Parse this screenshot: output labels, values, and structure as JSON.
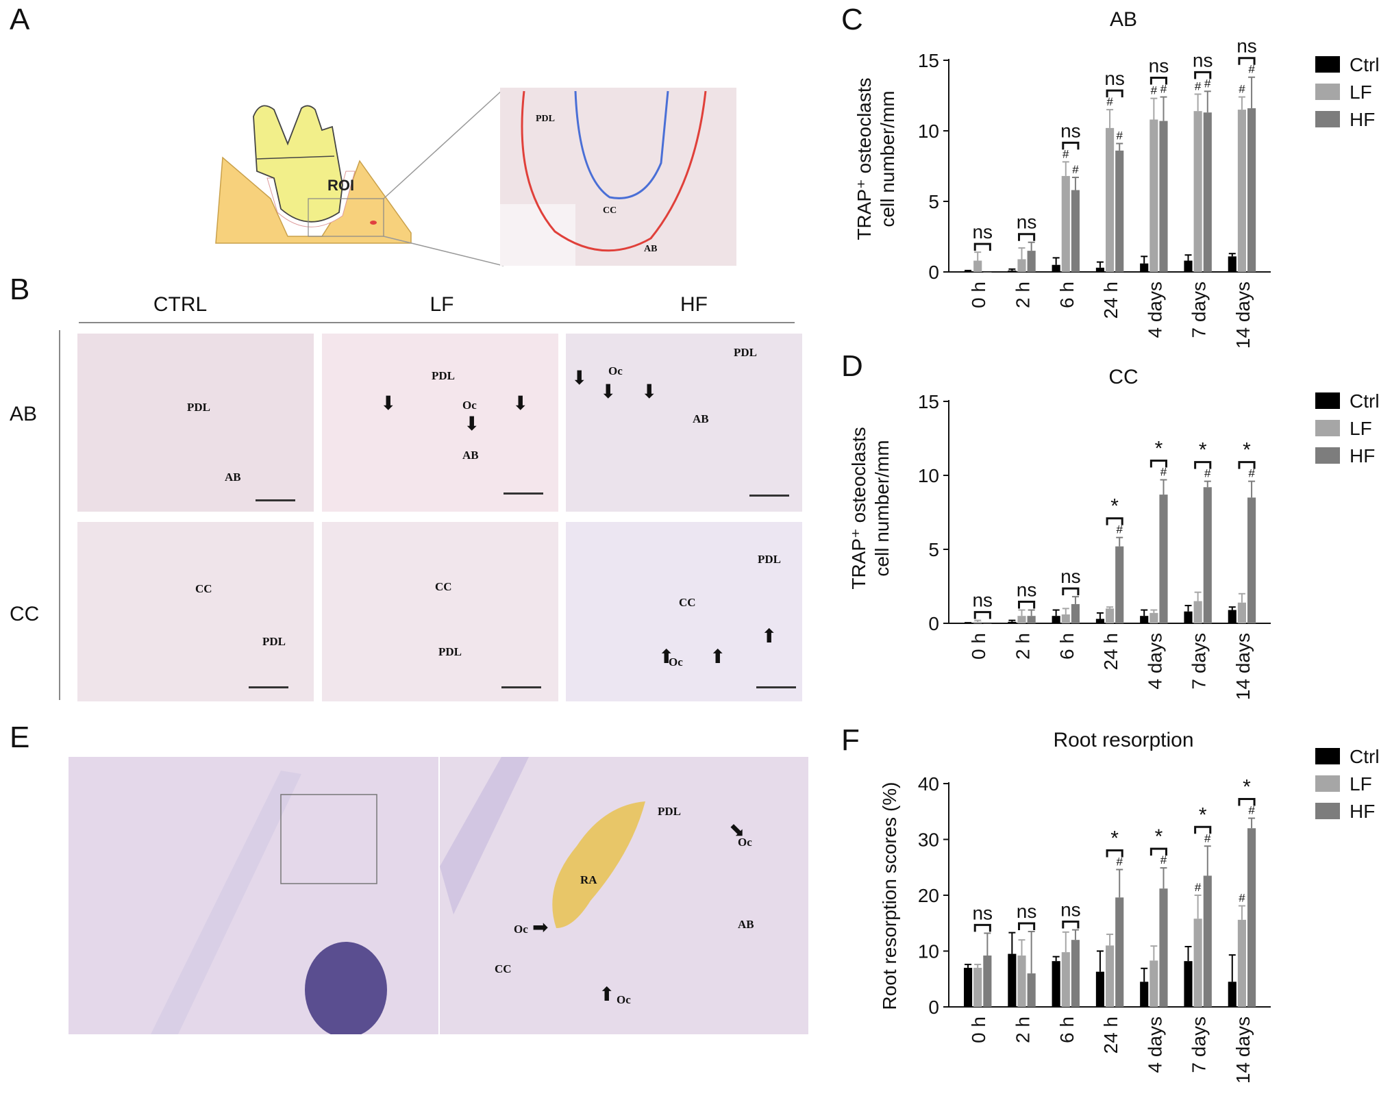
{
  "panels": {
    "a": {
      "letter": "A",
      "roi_label": "ROI",
      "zoom_labels": [
        "PDL",
        "CC",
        "AB"
      ]
    },
    "b": {
      "letter": "B",
      "col_headers": [
        "CTRL",
        "LF",
        "HF"
      ],
      "row_headers": [
        "AB",
        "CC"
      ],
      "image_labels": {
        "ab_ctrl": [
          "PDL",
          "AB"
        ],
        "ab_lf": [
          "PDL",
          "Oc",
          "AB"
        ],
        "ab_hf": [
          "PDL",
          "Oc",
          "AB"
        ],
        "cc_ctrl": [
          "CC",
          "PDL"
        ],
        "cc_lf": [
          "CC",
          "PDL"
        ],
        "cc_hf": [
          "PDL",
          "CC",
          "Oc"
        ]
      }
    },
    "c": {
      "letter": "C"
    },
    "d": {
      "letter": "D"
    },
    "e": {
      "letter": "E",
      "right_labels": [
        "PDL",
        "Oc",
        "RA",
        "Oc",
        "AB",
        "CC",
        "Oc"
      ]
    },
    "f": {
      "letter": "F"
    }
  },
  "colors": {
    "ctrl": "#000000",
    "lf": "#a6a6a6",
    "hf": "#7d7d7d",
    "roi_fill": "#f7d17c",
    "tooth": "#f2ef8a",
    "ab_line": "#e0403a",
    "cc_line": "#4a6fd6",
    "ra_fill": "#e8c35a",
    "stain_bg": "#efe2ea"
  },
  "chart_data": [
    {
      "type": "bar",
      "title": "AB",
      "ylabel": "TRAP⁺ osteoclasts\ncell number/mm",
      "ylim": [
        0,
        15
      ],
      "yticks": [
        "0",
        "5",
        "10",
        "15"
      ],
      "categories": [
        "0 h",
        "2 h",
        "6 h",
        "24 h",
        "4 days",
        "7 days",
        "14 days"
      ],
      "legend": [
        "Ctrl",
        "LF",
        "HF"
      ],
      "series": [
        {
          "name": "Ctrl",
          "values": [
            0.05,
            0.1,
            0.5,
            0.3,
            0.6,
            0.8,
            1.1
          ],
          "errors": [
            0.05,
            0.1,
            0.5,
            0.4,
            0.5,
            0.4,
            0.2
          ]
        },
        {
          "name": "LF",
          "values": [
            0.8,
            0.9,
            6.8,
            10.2,
            10.8,
            11.4,
            11.5
          ],
          "errors": [
            0.6,
            0.8,
            1.0,
            1.3,
            1.5,
            1.2,
            0.9
          ]
        },
        {
          "name": "HF",
          "values": [
            0.0,
            1.5,
            5.8,
            8.6,
            10.7,
            11.3,
            11.6
          ],
          "errors": [
            0.0,
            0.6,
            0.9,
            0.5,
            1.7,
            1.5,
            2.2
          ]
        }
      ],
      "lf_marks": [
        "",
        "",
        "#",
        "#",
        "#",
        "#",
        "#"
      ],
      "hf_marks": [
        "",
        "",
        "#",
        "#",
        "#",
        "#",
        "#"
      ],
      "comparisons": [
        "ns",
        "ns",
        "ns",
        "ns",
        "ns",
        "ns",
        "ns"
      ],
      "legend_position": "right"
    },
    {
      "type": "bar",
      "title": "CC",
      "ylabel": "TRAP⁺ osteoclasts\ncell number/mm",
      "ylim": [
        0,
        15
      ],
      "yticks": [
        "0",
        "5",
        "10",
        "15"
      ],
      "categories": [
        "0 h",
        "2 h",
        "6 h",
        "24 h",
        "4 days",
        "7 days",
        "14 days"
      ],
      "legend": [
        "Ctrl",
        "LF",
        "HF"
      ],
      "series": [
        {
          "name": "Ctrl",
          "values": [
            0.02,
            0.1,
            0.5,
            0.3,
            0.5,
            0.8,
            0.9
          ],
          "errors": [
            0.02,
            0.1,
            0.4,
            0.4,
            0.4,
            0.4,
            0.2
          ]
        },
        {
          "name": "LF",
          "values": [
            0.1,
            0.5,
            0.6,
            1.0,
            0.7,
            1.5,
            1.4
          ],
          "errors": [
            0.1,
            0.4,
            0.4,
            0.1,
            0.2,
            0.6,
            0.6
          ]
        },
        {
          "name": "HF",
          "values": [
            0.0,
            0.5,
            1.3,
            5.2,
            8.7,
            9.2,
            8.5
          ],
          "errors": [
            0.0,
            0.4,
            0.5,
            0.6,
            1.0,
            0.4,
            1.1
          ]
        }
      ],
      "lf_marks": [
        "",
        "",
        "",
        "",
        "",
        "",
        ""
      ],
      "hf_marks": [
        "",
        "",
        "",
        "#",
        "#",
        "#",
        "#"
      ],
      "comparisons": [
        "ns",
        "ns",
        "ns",
        "*",
        "*",
        "*",
        "*"
      ],
      "legend_position": "right"
    },
    {
      "type": "bar",
      "title": "Root resorption",
      "ylabel": "Root resorption scores (%)",
      "ylim": [
        0,
        40
      ],
      "yticks": [
        "0",
        "10",
        "20",
        "30",
        "40"
      ],
      "categories": [
        "0 h",
        "2 h",
        "6 h",
        "24 h",
        "4 days",
        "7 days",
        "14 days"
      ],
      "legend": [
        "Ctrl",
        "LF",
        "HF"
      ],
      "series": [
        {
          "name": "Ctrl",
          "values": [
            7.0,
            9.5,
            8.2,
            6.3,
            4.5,
            8.2,
            4.5
          ],
          "errors": [
            0.6,
            3.8,
            0.8,
            3.7,
            2.4,
            2.6,
            4.8
          ]
        },
        {
          "name": "LF",
          "values": [
            7.0,
            9.2,
            9.8,
            11.0,
            8.3,
            15.8,
            15.6
          ],
          "errors": [
            0.6,
            2.8,
            3.6,
            2.0,
            2.6,
            4.2,
            2.5
          ]
        },
        {
          "name": "HF",
          "values": [
            9.2,
            6.0,
            12.0,
            19.6,
            21.2,
            23.5,
            32.0
          ],
          "errors": [
            4.0,
            7.5,
            1.8,
            5.0,
            3.7,
            5.3,
            1.8
          ]
        }
      ],
      "lf_marks": [
        "",
        "",
        "",
        "",
        "",
        "#",
        "#"
      ],
      "hf_marks": [
        "",
        "",
        "",
        "#",
        "#",
        "#",
        "#"
      ],
      "comparisons": [
        "ns",
        "ns",
        "ns",
        "*",
        "*",
        "*",
        "*"
      ],
      "legend_position": "right"
    }
  ]
}
